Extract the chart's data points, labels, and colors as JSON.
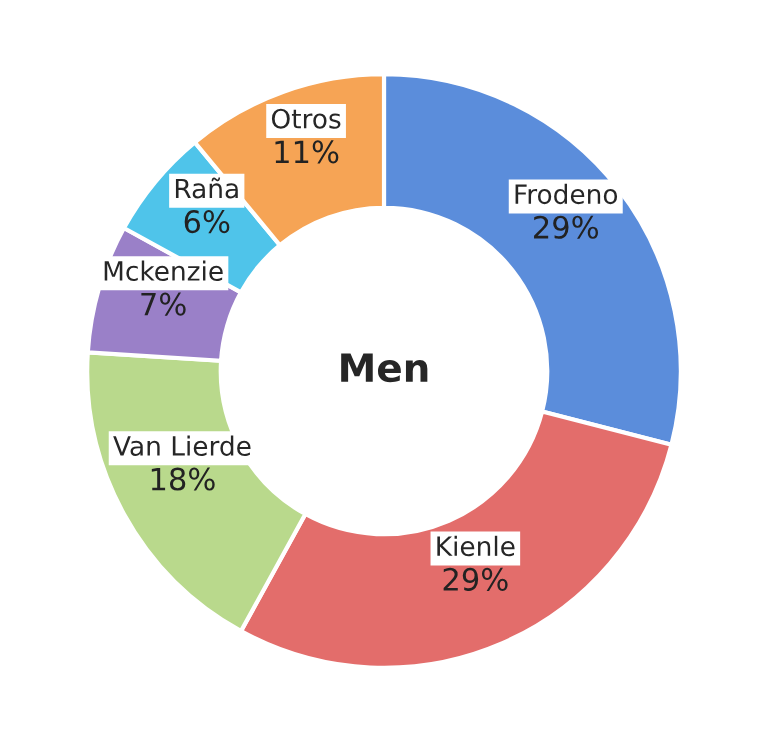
{
  "chart_data": {
    "type": "donut",
    "title": "Men",
    "categories": [
      "Frodeno",
      "Kienle",
      "Van Lierde",
      "Mckenzie",
      "Raña",
      "Otros"
    ],
    "values": [
      29,
      29,
      18,
      7,
      6,
      11
    ],
    "colors": [
      "#5b8ddb",
      "#e36d6b",
      "#b9d98c",
      "#9a80c8",
      "#4fc4ea",
      "#f6a455"
    ],
    "value_labels": [
      "29%",
      "29%",
      "18%",
      "7%",
      "6%",
      "11%"
    ]
  }
}
